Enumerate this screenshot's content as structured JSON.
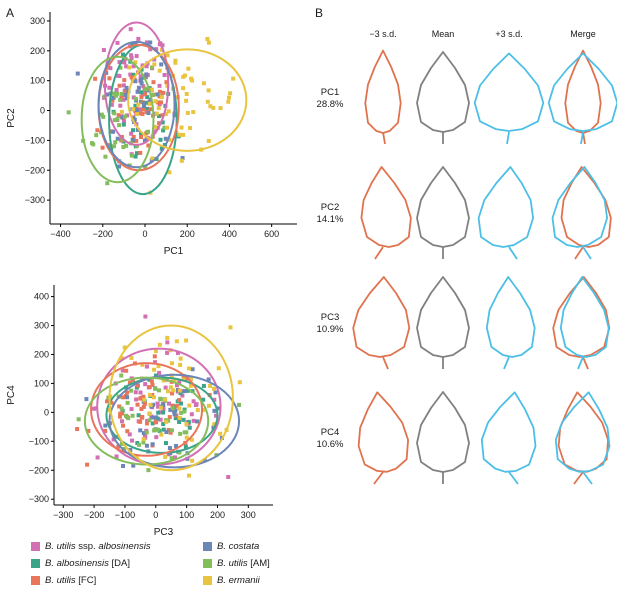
{
  "panel_a_label": "A",
  "panel_b_label": "B",
  "colors": {
    "albosinensis_ssp": "#d36fb3",
    "albosinensis_da": "#3aa489",
    "utilis_fc": "#e9765a",
    "costata": "#6c86b8",
    "utilis_am": "#84bd5c",
    "ermanii": "#e8c43f",
    "leaf_minus": "#e0734f",
    "leaf_mean": "#808080",
    "leaf_plus": "#4cbfe6"
  },
  "legend": [
    {
      "key": "albosinensis_ssp",
      "italic": "B. utilis",
      "plain": " ssp. ",
      "italic2": "albosinensis"
    },
    {
      "key": "costata",
      "italic": "B. costata",
      "plain": "",
      "italic2": ""
    },
    {
      "key": "albosinensis_da",
      "italic": "B. albosinensis",
      "plain": " [DA]",
      "italic2": ""
    },
    {
      "key": "utilis_am",
      "italic": "B. utilis",
      "plain": " [AM]",
      "italic2": ""
    },
    {
      "key": "utilis_fc",
      "italic": "B. utilis",
      "plain": " [FC]",
      "italic2": ""
    },
    {
      "key": "ermanii",
      "italic": "B. ermanii",
      "plain": "",
      "italic2": ""
    }
  ],
  "panel_b": {
    "columns": [
      "−3 s.d.",
      "Mean",
      "+3 s.d.",
      "Merge"
    ],
    "rows": [
      {
        "pc": "PC1",
        "pct": "28.8%"
      },
      {
        "pc": "PC2",
        "pct": "14.1%"
      },
      {
        "pc": "PC3",
        "pct": "10.9%"
      },
      {
        "pc": "PC4",
        "pct": "10.6%"
      }
    ]
  },
  "chart_data": [
    {
      "type": "scatter",
      "title": "",
      "xlabel": "PC1",
      "ylabel": "PC2",
      "xlim": [
        -450,
        720
      ],
      "ylim": [
        -380,
        330
      ],
      "xticks": [
        -400,
        -200,
        0,
        200,
        400,
        600
      ],
      "yticks": [
        -300,
        -200,
        -100,
        0,
        100,
        200,
        300
      ],
      "grid": false,
      "ellipses": [
        {
          "series": "albosinensis_ssp",
          "cx": -40,
          "cy": 90,
          "rx": 150,
          "ry": 205
        },
        {
          "series": "albosinensis_da",
          "cx": -10,
          "cy": -30,
          "rx": 160,
          "ry": 250
        },
        {
          "series": "utilis_fc",
          "cx": -30,
          "cy": 10,
          "rx": 190,
          "ry": 210
        },
        {
          "series": "costata",
          "cx": -40,
          "cy": 20,
          "rx": 180,
          "ry": 210
        },
        {
          "series": "utilis_am",
          "cx": -130,
          "cy": -30,
          "rx": 170,
          "ry": 210
        },
        {
          "series": "ermanii",
          "cx": 200,
          "cy": 35,
          "rx": 280,
          "ry": 170
        }
      ],
      "series": [
        {
          "name": "B. utilis ssp. albosinensis",
          "key": "albosinensis_ssp",
          "n": 70,
          "cx": -40,
          "cy": 90,
          "sx": 75,
          "sy": 90
        },
        {
          "name": "B. albosinensis [DA]",
          "key": "albosinensis_da",
          "n": 35,
          "cx": -10,
          "cy": -30,
          "sx": 80,
          "sy": 100
        },
        {
          "name": "B. utilis [FC]",
          "key": "utilis_fc",
          "n": 55,
          "cx": -30,
          "cy": 10,
          "sx": 90,
          "sy": 90
        },
        {
          "name": "B. costata",
          "key": "costata",
          "n": 45,
          "cx": -40,
          "cy": 20,
          "sx": 80,
          "sy": 90
        },
        {
          "name": "B. utilis [AM]",
          "key": "utilis_am",
          "n": 40,
          "cx": -130,
          "cy": -30,
          "sx": 80,
          "sy": 100
        },
        {
          "name": "B. ermanii",
          "key": "ermanii",
          "n": 60,
          "cx": 170,
          "cy": 30,
          "sx": 140,
          "sy": 90
        }
      ]
    },
    {
      "type": "scatter",
      "title": "",
      "xlabel": "PC3",
      "ylabel": "PC4",
      "xlim": [
        -330,
        380
      ],
      "ylim": [
        -320,
        440
      ],
      "xticks": [
        -300,
        -200,
        -100,
        0,
        100,
        200,
        300
      ],
      "yticks": [
        -300,
        -200,
        -100,
        0,
        100,
        200,
        300,
        400
      ],
      "grid": false,
      "ellipses": [
        {
          "series": "albosinensis_ssp",
          "cx": 10,
          "cy": 20,
          "rx": 200,
          "ry": 200
        },
        {
          "series": "albosinensis_da",
          "cx": 20,
          "cy": -10,
          "rx": 180,
          "ry": 130
        },
        {
          "series": "utilis_fc",
          "cx": -30,
          "cy": 10,
          "rx": 180,
          "ry": 160
        },
        {
          "series": "costata",
          "cx": 60,
          "cy": -30,
          "rx": 210,
          "ry": 160
        },
        {
          "series": "utilis_am",
          "cx": -30,
          "cy": -30,
          "rx": 200,
          "ry": 150
        },
        {
          "series": "ermanii",
          "cx": 50,
          "cy": 50,
          "rx": 200,
          "ry": 250
        }
      ],
      "series": [
        {
          "name": "B. utilis ssp. albosinensis",
          "key": "albosinensis_ssp",
          "n": 70,
          "cx": 10,
          "cy": 20,
          "sx": 100,
          "sy": 95
        },
        {
          "name": "B. albosinensis [DA]",
          "key": "albosinensis_da",
          "n": 35,
          "cx": 20,
          "cy": -10,
          "sx": 85,
          "sy": 65
        },
        {
          "name": "B. utilis [FC]",
          "key": "utilis_fc",
          "n": 55,
          "cx": -30,
          "cy": 10,
          "sx": 85,
          "sy": 75
        },
        {
          "name": "B. costata",
          "key": "costata",
          "n": 45,
          "cx": 60,
          "cy": -30,
          "sx": 100,
          "sy": 75
        },
        {
          "name": "B. utilis [AM]",
          "key": "utilis_am",
          "n": 40,
          "cx": -30,
          "cy": -30,
          "sx": 95,
          "sy": 70
        },
        {
          "name": "B. ermanii",
          "key": "ermanii",
          "n": 60,
          "cx": 50,
          "cy": 50,
          "sx": 95,
          "sy": 120
        }
      ]
    }
  ]
}
